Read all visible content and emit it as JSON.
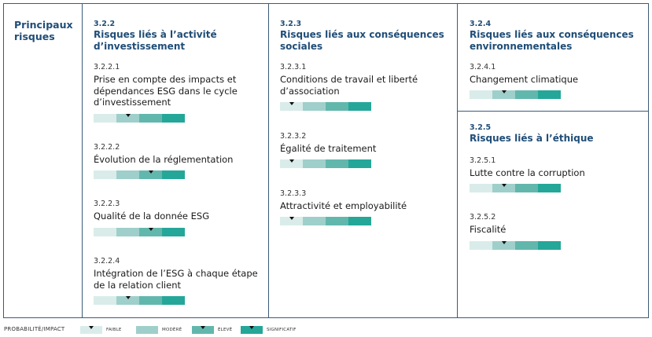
{
  "side_title": "Principaux risques",
  "colors": {
    "border": "#3b5a78",
    "heading": "#1f4d77",
    "faible": "#d9ecea",
    "modere": "#9fcfca",
    "eleve": "#62b7ad",
    "significatif": "#24a799"
  },
  "levels": [
    "faible",
    "modere",
    "eleve",
    "significatif"
  ],
  "sections": [
    {
      "num": "3.2.2",
      "title": "Risques liés à l’activité d’investissement",
      "risks": [
        {
          "num": "3.2.2.1",
          "title": "Prise en compte des impacts et dépendances ESG dans le cycle d’investissement",
          "level": "modere"
        },
        {
          "num": "3.2.2.2",
          "title": "Évolution de la réglementation",
          "level": "eleve"
        },
        {
          "num": "3.2.2.3",
          "title": "Qualité de la donnée ESG",
          "level": "eleve"
        },
        {
          "num": "3.2.2.4",
          "title": "Intégration de l’ESG à chaque étape de la relation client",
          "level": "modere"
        }
      ]
    },
    {
      "num": "3.2.3",
      "title": "Risques liés aux conséquences sociales",
      "risks": [
        {
          "num": "3.2.3.1",
          "title": "Conditions de travail et liberté d’association",
          "level": "faible"
        },
        {
          "num": "3.2.3.2",
          "title": "Égalité de traitement",
          "level": "faible"
        },
        {
          "num": "3.2.3.3",
          "title": "Attractivité et employabilité",
          "level": "faible"
        }
      ]
    },
    {
      "num": "3.2.4",
      "title": "Risques liés aux conséquences environnementales",
      "risks": [
        {
          "num": "3.2.4.1",
          "title": "Changement climatique",
          "level": "modere"
        }
      ]
    },
    {
      "num": "3.2.5",
      "title": "Risques liés à l’éthique",
      "risks": [
        {
          "num": "3.2.5.1",
          "title": "Lutte contre la corruption",
          "level": "modere"
        },
        {
          "num": "3.2.5.2",
          "title": "Fiscalité",
          "level": "modere"
        }
      ]
    }
  ],
  "legend": {
    "label": "PROBABILITÉ/IMPACT",
    "items": [
      {
        "level": "faible",
        "text": "FAIBLE"
      },
      {
        "level": "modere",
        "text": "MODÉRÉ"
      },
      {
        "level": "eleve",
        "text": "ÉLEVÉ"
      },
      {
        "level": "significatif",
        "text": "SIGNIFICATIF"
      }
    ]
  }
}
